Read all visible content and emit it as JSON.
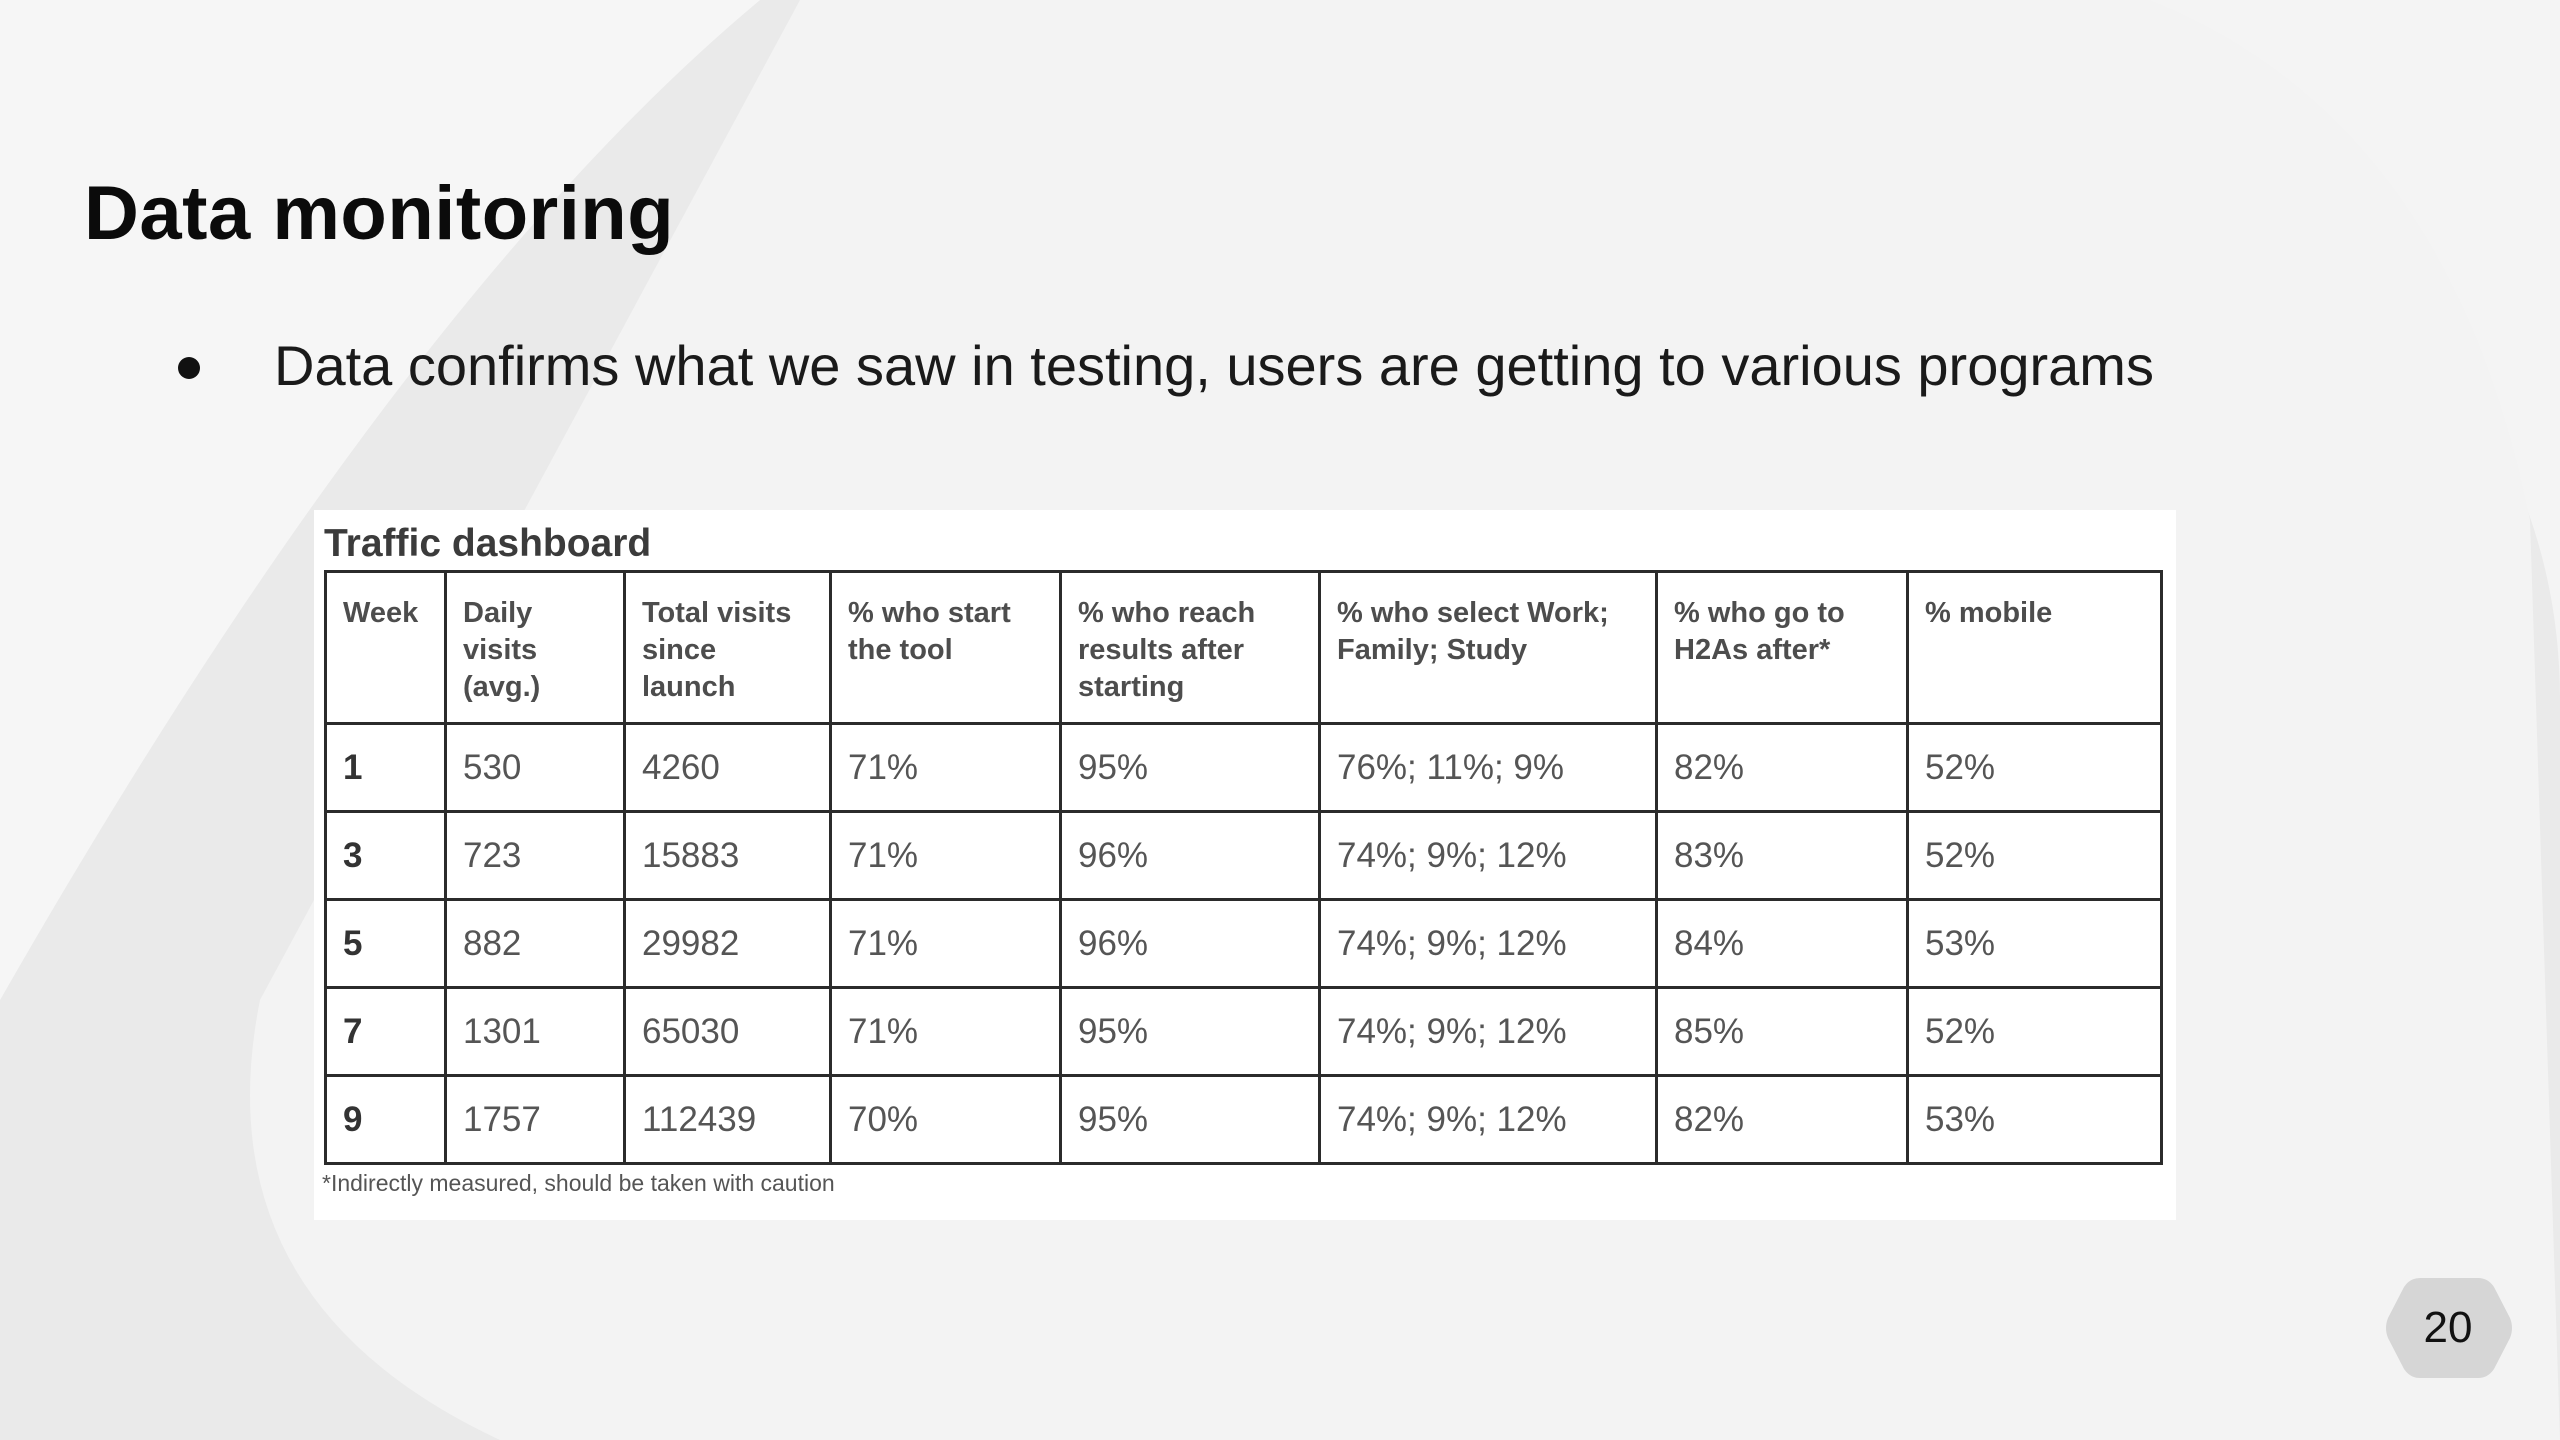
{
  "slide": {
    "title": "Data monitoring",
    "bullet": "Data confirms what we saw in testing, users are getting to various programs",
    "page_number": "20"
  },
  "dashboard": {
    "title": "Traffic dashboard",
    "headers": [
      "Week",
      "Daily visits (avg.)",
      "Total visits since launch",
      "% who start the tool",
      "% who reach results after starting",
      "% who select Work; Family; Study",
      "% who go to H2As after*",
      "% mobile"
    ],
    "rows": [
      [
        "1",
        "530",
        "4260",
        "71%",
        "95%",
        "76%; 11%; 9%",
        "82%",
        "52%"
      ],
      [
        "3",
        "723",
        "15883",
        "71%",
        "96%",
        "74%; 9%; 12%",
        "83%",
        "52%"
      ],
      [
        "5",
        "882",
        "29982",
        "71%",
        "96%",
        "74%; 9%; 12%",
        "84%",
        "53%"
      ],
      [
        "7",
        "1301",
        "65030",
        "71%",
        "95%",
        "74%; 9%; 12%",
        "85%",
        "52%"
      ],
      [
        "9",
        "1757",
        "112439",
        "70%",
        "95%",
        "74%; 9%; 12%",
        "82%",
        "53%"
      ]
    ],
    "footnote": "*Indirectly measured, should be taken with caution"
  },
  "colors": {
    "background": "#f4f4f4",
    "shape": "#eaeaea",
    "text": "#111111",
    "badge": "#d6d6d6"
  }
}
